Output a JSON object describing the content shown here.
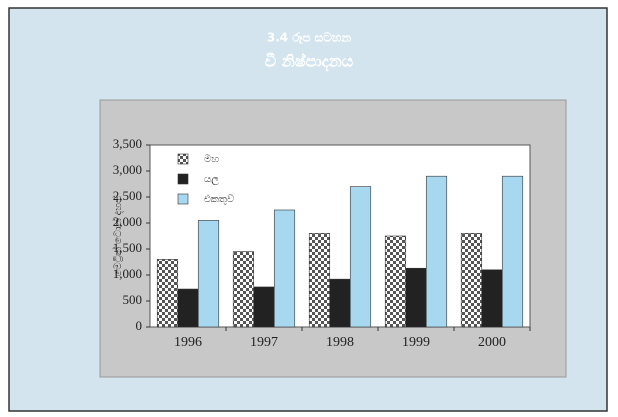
{
  "chart_data": {
    "type": "bar",
    "title": "3.4 රූප සටහන",
    "subtitle": "වී නිෂ්පාදනය",
    "y_label": "මෙට්‍රික් ටොන් දහස්",
    "categories": [
      "1996",
      "1997",
      "1998",
      "1999",
      "2000"
    ],
    "series": [
      {
        "name": "මහ",
        "color": "#555555",
        "pattern": "checker",
        "values": [
          1300,
          1450,
          1800,
          1750,
          1800
        ]
      },
      {
        "name": "යල",
        "color": "#222222",
        "values": [
          730,
          770,
          920,
          1130,
          1100
        ]
      },
      {
        "name": "එකතුව",
        "color": "#a8d8f0",
        "values": [
          2050,
          2250,
          2700,
          2900,
          2900
        ]
      }
    ],
    "ylim": [
      0,
      3500
    ],
    "yticks": [
      0,
      500,
      {
        "value": 1000,
        "label": "1,000"
      },
      {
        "value": 1500,
        "label": "1,500"
      },
      {
        "value": 2000,
        "label": "2,000"
      },
      {
        "value": 2500,
        "label": "2,500"
      },
      {
        "value": 3000,
        "label": "3,000"
      },
      {
        "value": 3500,
        "label": "3,500"
      }
    ],
    "legend": "top-left"
  }
}
